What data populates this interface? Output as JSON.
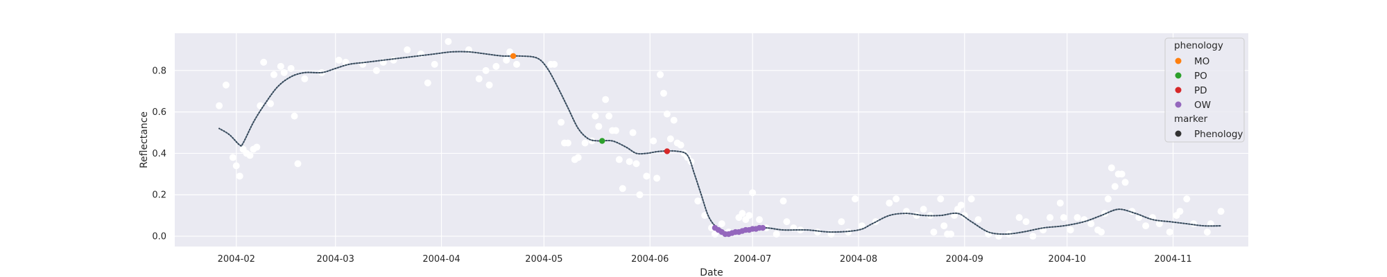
{
  "chart_data": {
    "type": "scatter",
    "xlabel": "Date",
    "ylabel": "Reflectance",
    "x_ticks": [
      "2004-02",
      "2004-03",
      "2004-04",
      "2004-05",
      "2004-06",
      "2004-07",
      "2004-08",
      "2004-09",
      "2004-10",
      "2004-11"
    ],
    "xlim": [
      "2004-01-14",
      "2004-11-23"
    ],
    "y_ticks": [
      0.0,
      0.2,
      0.4,
      0.6,
      0.8
    ],
    "ylim": [
      -0.05,
      0.98
    ],
    "grid": true,
    "legend_placement": "top-right",
    "legend": {
      "title": "phenology",
      "entries": [
        {
          "label": "MO",
          "color": "#ff7f0e"
        },
        {
          "label": "PO",
          "color": "#2ca02c"
        },
        {
          "label": "PD",
          "color": "#d62728"
        },
        {
          "label": "OW",
          "color": "#9467bd"
        }
      ],
      "marker_title": "marker",
      "marker_entries": [
        {
          "label": "Phenology",
          "color": "#333333"
        }
      ]
    },
    "colors": {
      "background": "#eaeaf2",
      "grid": "#ffffff",
      "observations": "#ffffff",
      "smoothed": "#5b7083"
    },
    "observations": [
      [
        "2004-01-27",
        0.63
      ],
      [
        "2004-01-29",
        0.73
      ],
      [
        "2004-01-31",
        0.38
      ],
      [
        "2004-02-01",
        0.34
      ],
      [
        "2004-02-02",
        0.29
      ],
      [
        "2004-02-03",
        0.42
      ],
      [
        "2004-02-04",
        0.4
      ],
      [
        "2004-02-05",
        0.39
      ],
      [
        "2004-02-06",
        0.42
      ],
      [
        "2004-02-07",
        0.43
      ],
      [
        "2004-02-08",
        0.63
      ],
      [
        "2004-02-09",
        0.84
      ],
      [
        "2004-02-11",
        0.64
      ],
      [
        "2004-02-12",
        0.78
      ],
      [
        "2004-02-14",
        0.82
      ],
      [
        "2004-02-15",
        0.79
      ],
      [
        "2004-02-17",
        0.81
      ],
      [
        "2004-02-18",
        0.58
      ],
      [
        "2004-02-19",
        0.35
      ],
      [
        "2004-02-21",
        0.76
      ],
      [
        "2004-02-26",
        0.79
      ],
      [
        "2004-03-02",
        0.85
      ],
      [
        "2004-03-04",
        0.84
      ],
      [
        "2004-03-09",
        0.83
      ],
      [
        "2004-03-13",
        0.8
      ],
      [
        "2004-03-15",
        0.84
      ],
      [
        "2004-03-18",
        0.85
      ],
      [
        "2004-03-22",
        0.9
      ],
      [
        "2004-03-26",
        0.88
      ],
      [
        "2004-03-28",
        0.74
      ],
      [
        "2004-03-30",
        0.83
      ],
      [
        "2004-04-03",
        0.94
      ],
      [
        "2004-04-09",
        0.9
      ],
      [
        "2004-04-12",
        0.76
      ],
      [
        "2004-04-14",
        0.8
      ],
      [
        "2004-04-15",
        0.73
      ],
      [
        "2004-04-17",
        0.82
      ],
      [
        "2004-04-20",
        0.85
      ],
      [
        "2004-04-21",
        0.89
      ],
      [
        "2004-04-23",
        0.83
      ],
      [
        "2004-05-03",
        0.83
      ],
      [
        "2004-05-04",
        0.83
      ],
      [
        "2004-05-06",
        0.55
      ],
      [
        "2004-05-07",
        0.45
      ],
      [
        "2004-05-08",
        0.45
      ],
      [
        "2004-05-10",
        0.37
      ],
      [
        "2004-05-11",
        0.38
      ],
      [
        "2004-05-13",
        0.45
      ],
      [
        "2004-05-15",
        0.46
      ],
      [
        "2004-05-16",
        0.58
      ],
      [
        "2004-05-17",
        0.53
      ],
      [
        "2004-05-19",
        0.66
      ],
      [
        "2004-05-20",
        0.58
      ],
      [
        "2004-05-21",
        0.51
      ],
      [
        "2004-05-22",
        0.51
      ],
      [
        "2004-05-23",
        0.37
      ],
      [
        "2004-05-24",
        0.23
      ],
      [
        "2004-05-26",
        0.36
      ],
      [
        "2004-05-27",
        0.5
      ],
      [
        "2004-05-28",
        0.35
      ],
      [
        "2004-05-29",
        0.2
      ],
      [
        "2004-05-31",
        0.29
      ],
      [
        "2004-06-02",
        0.46
      ],
      [
        "2004-06-03",
        0.28
      ],
      [
        "2004-06-04",
        0.78
      ],
      [
        "2004-06-05",
        0.69
      ],
      [
        "2004-06-06",
        0.59
      ],
      [
        "2004-06-07",
        0.47
      ],
      [
        "2004-06-08",
        0.56
      ],
      [
        "2004-06-09",
        0.45
      ],
      [
        "2004-06-10",
        0.44
      ],
      [
        "2004-06-11",
        0.4
      ],
      [
        "2004-06-12",
        0.38
      ],
      [
        "2004-06-13",
        0.36
      ],
      [
        "2004-06-15",
        0.17
      ],
      [
        "2004-06-17",
        0.1
      ],
      [
        "2004-06-19",
        0.04
      ],
      [
        "2004-06-20",
        0.01
      ],
      [
        "2004-06-22",
        0.06
      ],
      [
        "2004-06-24",
        0.02
      ],
      [
        "2004-06-27",
        0.09
      ],
      [
        "2004-06-28",
        0.11
      ],
      [
        "2004-06-29",
        0.08
      ],
      [
        "2004-06-30",
        0.1
      ],
      [
        "2004-07-01",
        0.21
      ],
      [
        "2004-07-03",
        0.08
      ],
      [
        "2004-07-05",
        0.04
      ],
      [
        "2004-07-08",
        0.01
      ],
      [
        "2004-07-10",
        0.17
      ],
      [
        "2004-07-11",
        0.07
      ],
      [
        "2004-07-13",
        0.04
      ],
      [
        "2004-07-15",
        0.03
      ],
      [
        "2004-07-20",
        0.02
      ],
      [
        "2004-07-24",
        0.01
      ],
      [
        "2004-07-27",
        0.07
      ],
      [
        "2004-07-29",
        0.02
      ],
      [
        "2004-07-31",
        0.18
      ],
      [
        "2004-08-02",
        0.05
      ],
      [
        "2004-08-06",
        0.07
      ],
      [
        "2004-08-10",
        0.16
      ],
      [
        "2004-08-12",
        0.18
      ],
      [
        "2004-08-15",
        0.12
      ],
      [
        "2004-08-18",
        0.1
      ],
      [
        "2004-08-20",
        0.13
      ],
      [
        "2004-08-22",
        0.1
      ],
      [
        "2004-08-23",
        0.02
      ],
      [
        "2004-08-25",
        0.18
      ],
      [
        "2004-08-26",
        0.05
      ],
      [
        "2004-08-27",
        0.01
      ],
      [
        "2004-08-28",
        0.01
      ],
      [
        "2004-08-29",
        0.1
      ],
      [
        "2004-08-30",
        0.13
      ],
      [
        "2004-08-31",
        0.15
      ],
      [
        "2004-09-01",
        0.1
      ],
      [
        "2004-09-03",
        0.18
      ],
      [
        "2004-09-05",
        0.08
      ],
      [
        "2004-09-08",
        0.01
      ],
      [
        "2004-09-11",
        0.0
      ],
      [
        "2004-09-14",
        0.01
      ],
      [
        "2004-09-17",
        0.09
      ],
      [
        "2004-09-19",
        0.07
      ],
      [
        "2004-09-21",
        0.0
      ],
      [
        "2004-09-24",
        0.03
      ],
      [
        "2004-09-26",
        0.09
      ],
      [
        "2004-09-29",
        0.16
      ],
      [
        "2004-09-30",
        0.09
      ],
      [
        "2004-10-02",
        0.03
      ],
      [
        "2004-10-04",
        0.09
      ],
      [
        "2004-10-06",
        0.08
      ],
      [
        "2004-10-08",
        0.06
      ],
      [
        "2004-10-10",
        0.03
      ],
      [
        "2004-10-11",
        0.02
      ],
      [
        "2004-10-12",
        0.11
      ],
      [
        "2004-10-13",
        0.18
      ],
      [
        "2004-10-14",
        0.33
      ],
      [
        "2004-10-15",
        0.24
      ],
      [
        "2004-10-16",
        0.3
      ],
      [
        "2004-10-17",
        0.3
      ],
      [
        "2004-10-18",
        0.26
      ],
      [
        "2004-10-20",
        0.12
      ],
      [
        "2004-10-22",
        0.09
      ],
      [
        "2004-10-24",
        0.05
      ],
      [
        "2004-10-26",
        0.09
      ],
      [
        "2004-10-28",
        0.06
      ],
      [
        "2004-10-31",
        0.02
      ],
      [
        "2004-11-02",
        0.1
      ],
      [
        "2004-11-03",
        0.12
      ],
      [
        "2004-11-05",
        0.18
      ],
      [
        "2004-11-07",
        0.06
      ],
      [
        "2004-11-11",
        0.02
      ],
      [
        "2004-11-12",
        0.06
      ],
      [
        "2004-11-15",
        0.12
      ]
    ],
    "smoothed": [
      [
        "2004-01-27",
        0.52
      ],
      [
        "2004-01-30",
        0.49
      ],
      [
        "2004-02-02",
        0.44
      ],
      [
        "2004-02-03",
        0.45
      ],
      [
        "2004-02-06",
        0.55
      ],
      [
        "2004-02-09",
        0.63
      ],
      [
        "2004-02-13",
        0.72
      ],
      [
        "2004-02-17",
        0.77
      ],
      [
        "2004-02-21",
        0.79
      ],
      [
        "2004-02-26",
        0.79
      ],
      [
        "2004-03-01",
        0.81
      ],
      [
        "2004-03-05",
        0.83
      ],
      [
        "2004-03-10",
        0.84
      ],
      [
        "2004-03-15",
        0.85
      ],
      [
        "2004-03-20",
        0.86
      ],
      [
        "2004-03-25",
        0.87
      ],
      [
        "2004-03-30",
        0.88
      ],
      [
        "2004-04-04",
        0.89
      ],
      [
        "2004-04-09",
        0.89
      ],
      [
        "2004-04-14",
        0.88
      ],
      [
        "2004-04-19",
        0.87
      ],
      [
        "2004-04-24",
        0.87
      ],
      [
        "2004-04-29",
        0.86
      ],
      [
        "2004-05-02",
        0.81
      ],
      [
        "2004-05-05",
        0.72
      ],
      [
        "2004-05-08",
        0.62
      ],
      [
        "2004-05-11",
        0.52
      ],
      [
        "2004-05-14",
        0.47
      ],
      [
        "2004-05-17",
        0.46
      ],
      [
        "2004-05-21",
        0.46
      ],
      [
        "2004-05-25",
        0.43
      ],
      [
        "2004-05-28",
        0.4
      ],
      [
        "2004-05-31",
        0.4
      ],
      [
        "2004-06-04",
        0.41
      ],
      [
        "2004-06-09",
        0.41
      ],
      [
        "2004-06-12",
        0.39
      ],
      [
        "2004-06-14",
        0.3
      ],
      [
        "2004-06-16",
        0.2
      ],
      [
        "2004-06-18",
        0.1
      ],
      [
        "2004-06-20",
        0.05
      ],
      [
        "2004-06-22",
        0.03
      ],
      [
        "2004-06-24",
        0.01
      ],
      [
        "2004-06-27",
        0.02
      ],
      [
        "2004-07-01",
        0.03
      ],
      [
        "2004-07-05",
        0.04
      ],
      [
        "2004-07-10",
        0.03
      ],
      [
        "2004-07-17",
        0.03
      ],
      [
        "2004-07-24",
        0.02
      ],
      [
        "2004-08-01",
        0.03
      ],
      [
        "2004-08-05",
        0.06
      ],
      [
        "2004-08-10",
        0.1
      ],
      [
        "2004-08-15",
        0.11
      ],
      [
        "2004-08-20",
        0.1
      ],
      [
        "2004-08-25",
        0.1
      ],
      [
        "2004-08-30",
        0.11
      ],
      [
        "2004-09-03",
        0.07
      ],
      [
        "2004-09-08",
        0.02
      ],
      [
        "2004-09-13",
        0.01
      ],
      [
        "2004-09-18",
        0.02
      ],
      [
        "2004-09-24",
        0.04
      ],
      [
        "2004-09-30",
        0.05
      ],
      [
        "2004-10-06",
        0.07
      ],
      [
        "2004-10-11",
        0.1
      ],
      [
        "2004-10-16",
        0.13
      ],
      [
        "2004-10-21",
        0.11
      ],
      [
        "2004-10-26",
        0.08
      ],
      [
        "2004-10-31",
        0.07
      ],
      [
        "2004-11-05",
        0.06
      ],
      [
        "2004-11-10",
        0.05
      ],
      [
        "2004-11-15",
        0.05
      ]
    ],
    "phenology_points": [
      {
        "label": "MO",
        "points": [
          [
            "2004-04-22",
            0.87
          ]
        ]
      },
      {
        "label": "PO",
        "points": [
          [
            "2004-05-18",
            0.46
          ]
        ]
      },
      {
        "label": "PD",
        "points": [
          [
            "2004-06-06",
            0.41
          ]
        ]
      },
      {
        "label": "OW",
        "points": [
          [
            "2004-06-20",
            0.04
          ],
          [
            "2004-06-21",
            0.03
          ],
          [
            "2004-06-22",
            0.02
          ],
          [
            "2004-06-23",
            0.01
          ],
          [
            "2004-06-24",
            0.01
          ],
          [
            "2004-06-25",
            0.015
          ],
          [
            "2004-06-26",
            0.02
          ],
          [
            "2004-06-27",
            0.02
          ],
          [
            "2004-06-28",
            0.025
          ],
          [
            "2004-06-29",
            0.03
          ],
          [
            "2004-06-30",
            0.03
          ],
          [
            "2004-07-01",
            0.035
          ],
          [
            "2004-07-02",
            0.035
          ],
          [
            "2004-07-03",
            0.04
          ],
          [
            "2004-07-04",
            0.04
          ]
        ]
      }
    ]
  }
}
